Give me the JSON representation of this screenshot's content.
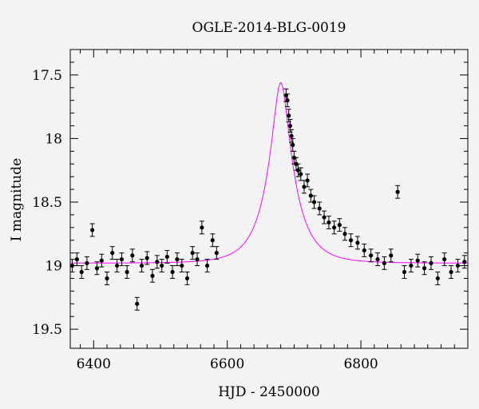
{
  "chart_data": {
    "type": "scatter",
    "title": "OGLE-2014-BLG-0019",
    "xlabel": "HJD - 2450000",
    "ylabel": "I magnitude",
    "xlim": [
      6365,
      6960
    ],
    "ylim": [
      19.65,
      17.3
    ],
    "y_inverted": true,
    "x_ticks": [
      6400,
      6600,
      6800
    ],
    "x_tick_labels": [
      "6400",
      "6600",
      "6800"
    ],
    "y_ticks": [
      17.5,
      18,
      18.5,
      19,
      19.5
    ],
    "y_tick_labels": [
      "17.5",
      "18",
      "18.5",
      "19",
      "19.5"
    ],
    "grid": false,
    "colors": {
      "data": "#000000",
      "model": "#ff00ff",
      "background": "#f3f3f3"
    },
    "series": [
      {
        "kind": "observations_with_error_bars",
        "error": 0.05,
        "x": [
          6368,
          6375,
          6382,
          6390,
          6398,
          6405,
          6412,
          6420,
          6428,
          6435,
          6442,
          6450,
          6458,
          6465,
          6472,
          6480,
          6488,
          6495,
          6502,
          6510,
          6518,
          6525,
          6532,
          6540,
          6548,
          6555,
          6562,
          6570,
          6578,
          6584,
          6688,
          6690,
          6692,
          6694,
          6696,
          6698,
          6700,
          6703,
          6706,
          6710,
          6715,
          6720,
          6725,
          6730,
          6738,
          6745,
          6752,
          6760,
          6768,
          6776,
          6785,
          6795,
          6805,
          6815,
          6825,
          6835,
          6845,
          6855,
          6865,
          6875,
          6885,
          6895,
          6905,
          6915,
          6925,
          6935,
          6945,
          6955
        ],
        "y": [
          19.0,
          18.95,
          19.05,
          18.98,
          18.72,
          19.02,
          18.96,
          19.1,
          18.9,
          19.0,
          18.95,
          19.05,
          18.92,
          19.3,
          19.0,
          18.94,
          19.08,
          18.97,
          19.0,
          18.93,
          19.05,
          18.95,
          19.0,
          19.1,
          18.9,
          18.95,
          18.7,
          19.0,
          18.8,
          18.9,
          17.66,
          17.7,
          17.82,
          17.9,
          17.98,
          18.05,
          18.15,
          18.2,
          18.25,
          18.28,
          18.38,
          18.33,
          18.45,
          18.5,
          18.55,
          18.62,
          18.66,
          18.7,
          18.68,
          18.75,
          18.8,
          18.82,
          18.88,
          18.92,
          18.95,
          18.98,
          18.92,
          18.42,
          19.05,
          19.0,
          18.96,
          19.02,
          18.98,
          19.1,
          18.95,
          19.05,
          19.0,
          18.97
        ]
      },
      {
        "kind": "model_curve",
        "t0": 6680,
        "peak": 17.56,
        "baseline": 18.98
      }
    ]
  }
}
